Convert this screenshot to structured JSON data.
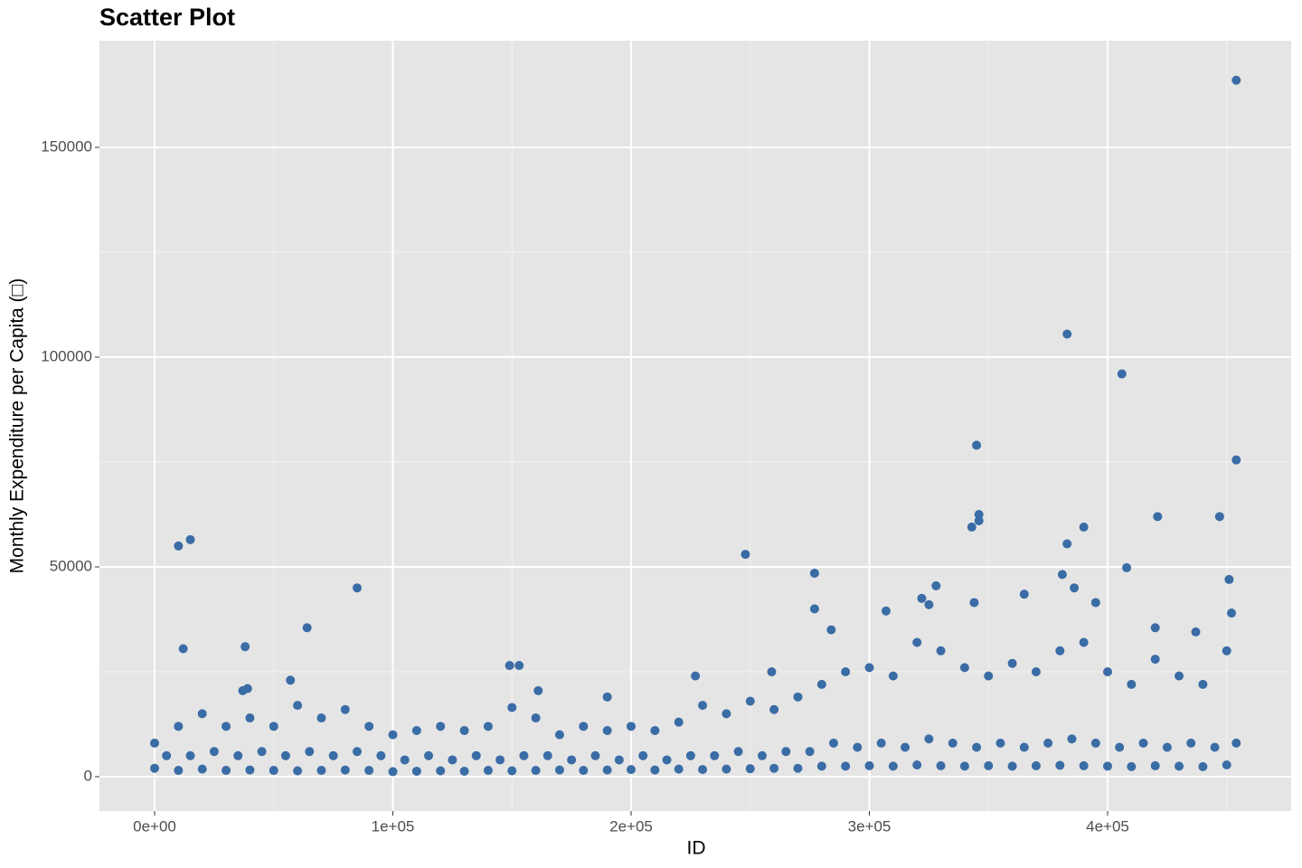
{
  "chart_data": {
    "type": "scatter",
    "title": "Scatter Plot",
    "xlabel": "ID",
    "ylabel": "Monthly Expenditure per Capita (□)",
    "color": "#3a6ca5",
    "grid": true,
    "xlim": [
      -23150,
      477040
    ],
    "ylim": [
      -8190,
      175430
    ],
    "xticks": [
      {
        "value": 0,
        "label": "0e+00"
      },
      {
        "value": 100000,
        "label": "1e+05"
      },
      {
        "value": 200000,
        "label": "2e+05"
      },
      {
        "value": 300000,
        "label": "3e+05"
      },
      {
        "value": 400000,
        "label": "4e+05"
      }
    ],
    "yticks": [
      0,
      50000,
      100000,
      150000
    ],
    "xminor": [
      50000,
      150000,
      250000,
      350000,
      450000
    ],
    "yminor": [
      25000,
      75000,
      125000
    ],
    "x": [
      454000,
      383000,
      406000,
      345000,
      454000,
      346000,
      346000,
      343000,
      390000,
      421000,
      447000,
      383000,
      408000,
      381000,
      10000,
      15000,
      12000,
      38000,
      85000,
      248000,
      277000,
      64000,
      328000,
      451000,
      149000,
      153000,
      37000,
      39000,
      57000,
      190000,
      161000,
      227000,
      259000,
      277000,
      284000,
      322000,
      325000,
      365000,
      386000,
      395000,
      344000,
      420000,
      437000,
      452000,
      307000,
      0,
      0,
      5000,
      10000,
      10000,
      15000,
      20000,
      20000,
      25000,
      30000,
      30000,
      35000,
      40000,
      40000,
      45000,
      50000,
      50000,
      55000,
      60000,
      60000,
      65000,
      70000,
      70000,
      75000,
      80000,
      80000,
      85000,
      90000,
      90000,
      95000,
      100000,
      100000,
      105000,
      110000,
      110000,
      115000,
      120000,
      120000,
      125000,
      130000,
      130000,
      135000,
      140000,
      140000,
      145000,
      150000,
      150000,
      155000,
      160000,
      160000,
      165000,
      170000,
      170000,
      175000,
      180000,
      180000,
      185000,
      190000,
      190000,
      195000,
      200000,
      200000,
      205000,
      210000,
      210000,
      215000,
      220000,
      220000,
      225000,
      230000,
      230000,
      235000,
      240000,
      240000,
      245000,
      250000,
      250000,
      255000,
      260000,
      260000,
      265000,
      270000,
      270000,
      275000,
      280000,
      280000,
      285000,
      290000,
      290000,
      295000,
      300000,
      300000,
      305000,
      310000,
      310000,
      315000,
      320000,
      320000,
      325000,
      330000,
      330000,
      335000,
      340000,
      340000,
      345000,
      350000,
      350000,
      355000,
      360000,
      360000,
      365000,
      370000,
      370000,
      375000,
      380000,
      380000,
      385000,
      390000,
      390000,
      395000,
      400000,
      400000,
      405000,
      410000,
      410000,
      415000,
      420000,
      420000,
      425000,
      430000,
      430000,
      435000,
      440000,
      440000,
      445000,
      450000,
      450000,
      454000
    ],
    "values": [
      166000,
      105500,
      96000,
      79000,
      75500,
      62500,
      61000,
      59500,
      59500,
      62000,
      62000,
      55500,
      49800,
      48200,
      55000,
      56500,
      30500,
      31000,
      45000,
      53000,
      48500,
      35500,
      45500,
      47000,
      26500,
      26500,
      20500,
      21000,
      23000,
      19000,
      20500,
      24000,
      25000,
      40000,
      35000,
      42500,
      41000,
      43500,
      45000,
      41500,
      41500,
      35500,
      34500,
      39000,
      39500,
      2000,
      8000,
      5000,
      1500,
      12000,
      5000,
      1800,
      15000,
      6000,
      1500,
      12000,
      5000,
      1600,
      14000,
      6000,
      1500,
      12000,
      5000,
      1400,
      17000,
      6000,
      1500,
      14000,
      5000,
      1600,
      16000,
      6000,
      1500,
      12000,
      5000,
      1200,
      10000,
      4000,
      1300,
      11000,
      5000,
      1400,
      12000,
      4000,
      1300,
      11000,
      5000,
      1500,
      12000,
      4000,
      1400,
      16500,
      5000,
      1500,
      14000,
      5000,
      1600,
      10000,
      4000,
      1500,
      12000,
      5000,
      1600,
      11000,
      4000,
      1700,
      12000,
      5000,
      1600,
      11000,
      4000,
      1800,
      13000,
      5000,
      1700,
      17000,
      5000,
      1800,
      15000,
      6000,
      1900,
      18000,
      5000,
      2000,
      16000,
      6000,
      2000,
      19000,
      6000,
      2500,
      22000,
      8000,
      2500,
      25000,
      7000,
      2600,
      26000,
      8000,
      2500,
      24000,
      7000,
      2800,
      32000,
      9000,
      2600,
      30000,
      8000,
      2500,
      26000,
      7000,
      2600,
      24000,
      8000,
      2500,
      27000,
      7000,
      2600,
      25000,
      8000,
      2700,
      30000,
      9000,
      2600,
      32000,
      8000,
      2500,
      25000,
      7000,
      2400,
      22000,
      8000,
      2600,
      28000,
      7000,
      2500,
      24000,
      8000,
      2400,
      22000,
      7000,
      2800,
      30000,
      8000
    ]
  }
}
